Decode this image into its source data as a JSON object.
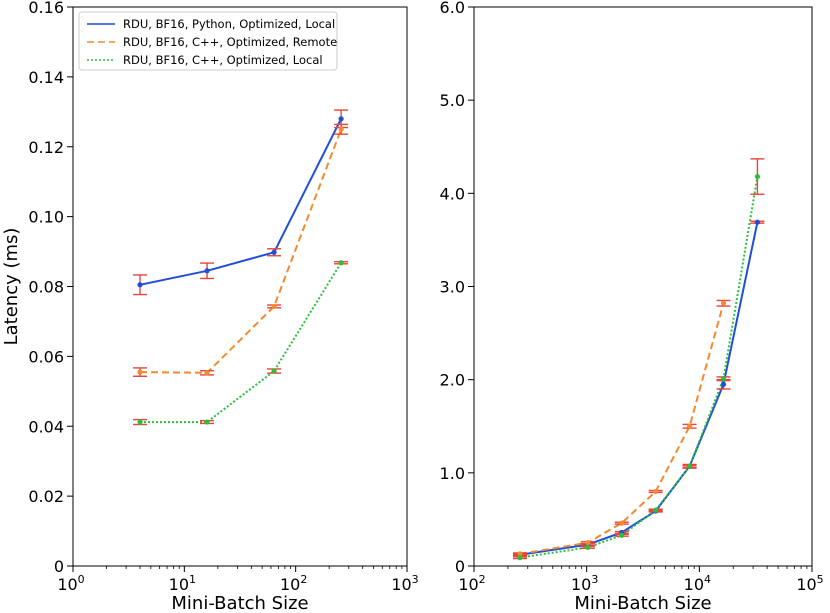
{
  "chart_data": [
    {
      "type": "line",
      "xscale": "log",
      "xlim": [
        1,
        1000
      ],
      "ylim": [
        0,
        0.16
      ],
      "xlabel": "Mini-Batch Size",
      "ylabel": "Latency (ms)",
      "xticks": [
        {
          "value": 1,
          "base": "10",
          "exp": "0"
        },
        {
          "value": 10,
          "base": "10",
          "exp": "1"
        },
        {
          "value": 100,
          "base": "10",
          "exp": "2"
        },
        {
          "value": 1000,
          "base": "10",
          "exp": "3"
        }
      ],
      "yticks": [
        {
          "value": 0,
          "label": "0"
        },
        {
          "value": 0.02,
          "label": "0.02"
        },
        {
          "value": 0.04,
          "label": "0.04"
        },
        {
          "value": 0.06,
          "label": "0.06"
        },
        {
          "value": 0.08,
          "label": "0.08"
        },
        {
          "value": 0.1,
          "label": "0.10"
        },
        {
          "value": 0.12,
          "label": "0.12"
        },
        {
          "value": 0.14,
          "label": "0.14"
        },
        {
          "value": 0.16,
          "label": "0.16"
        }
      ],
      "legend": {
        "position": "top-left",
        "entries": [
          {
            "name": "RDU, BF16, Python, Optimized, Local",
            "color": "#1f4fd8",
            "style": "solid"
          },
          {
            "name": "RDU, BF16, C++, Optimized, Remote",
            "color": "#f28a2e",
            "style": "dashed"
          },
          {
            "name": "RDU, BF16, C++, Optimized, Local",
            "color": "#2bbf3a",
            "style": "dotted"
          }
        ]
      },
      "series": [
        {
          "name": "RDU, BF16, Python, Optimized, Local",
          "color": "#1f4fd8",
          "style": "solid",
          "x": [
            4,
            16,
            64,
            256
          ],
          "y": [
            0.0805,
            0.0845,
            0.0898,
            0.128
          ],
          "err": [
            0.0028,
            0.0022,
            0.001,
            0.0025
          ]
        },
        {
          "name": "RDU, BF16, C++, Optimized, Remote",
          "color": "#f28a2e",
          "style": "dashed",
          "x": [
            4,
            16,
            64,
            256
          ],
          "y": [
            0.0555,
            0.0553,
            0.0743,
            0.125
          ],
          "err": [
            0.0012,
            0.0006,
            0.0004,
            0.0014
          ]
        },
        {
          "name": "RDU, BF16, C++, Optimized, Local",
          "color": "#2bbf3a",
          "style": "dotted",
          "x": [
            4,
            16,
            64,
            256
          ],
          "y": [
            0.0412,
            0.0412,
            0.0558,
            0.0868
          ],
          "err": [
            0.0007,
            0.0004,
            0.0006,
            0.0003
          ]
        }
      ],
      "errorbar_color": "#e8453c"
    },
    {
      "type": "line",
      "xscale": "log",
      "xlim": [
        100,
        100000
      ],
      "ylim": [
        0,
        6.0
      ],
      "xlabel": "Mini-Batch Size",
      "ylabel": "",
      "xticks": [
        {
          "value": 100,
          "base": "10",
          "exp": "2"
        },
        {
          "value": 1000,
          "base": "10",
          "exp": "3"
        },
        {
          "value": 10000,
          "base": "10",
          "exp": "4"
        },
        {
          "value": 100000,
          "base": "10",
          "exp": "5"
        }
      ],
      "yticks": [
        {
          "value": 0,
          "label": "0"
        },
        {
          "value": 1.0,
          "label": "1.0"
        },
        {
          "value": 2.0,
          "label": "2.0"
        },
        {
          "value": 3.0,
          "label": "3.0"
        },
        {
          "value": 4.0,
          "label": "4.0"
        },
        {
          "value": 5.0,
          "label": "5.0"
        },
        {
          "value": 6.0,
          "label": "6.0"
        }
      ],
      "series": [
        {
          "name": "RDU, BF16, Python, Optimized, Local",
          "color": "#1f4fd8",
          "style": "solid",
          "x": [
            256,
            1024,
            2048,
            4096,
            8192,
            16384,
            32768
          ],
          "y": [
            0.12,
            0.23,
            0.36,
            0.59,
            1.07,
            1.95,
            3.69
          ],
          "err": [
            0.01,
            0.01,
            0.01,
            0.01,
            0.02,
            0.05,
            0.01
          ]
        },
        {
          "name": "RDU, BF16, C++, Optimized, Remote",
          "color": "#f28a2e",
          "style": "dashed",
          "x": [
            256,
            1024,
            2048,
            4096,
            8192,
            16384
          ],
          "y": [
            0.13,
            0.25,
            0.46,
            0.8,
            1.5,
            2.82
          ],
          "err": [
            0.01,
            0.01,
            0.01,
            0.01,
            0.02,
            0.03
          ]
        },
        {
          "name": "RDU, BF16, C++, Optimized, Local",
          "color": "#2bbf3a",
          "style": "dotted",
          "x": [
            256,
            1024,
            2048,
            4096,
            8192,
            16384,
            32768
          ],
          "y": [
            0.09,
            0.2,
            0.33,
            0.6,
            1.07,
            2.01,
            4.18
          ],
          "err": [
            0.01,
            0.01,
            0.01,
            0.01,
            0.01,
            0.02,
            0.19
          ]
        }
      ],
      "errorbar_color": "#e8453c"
    }
  ]
}
